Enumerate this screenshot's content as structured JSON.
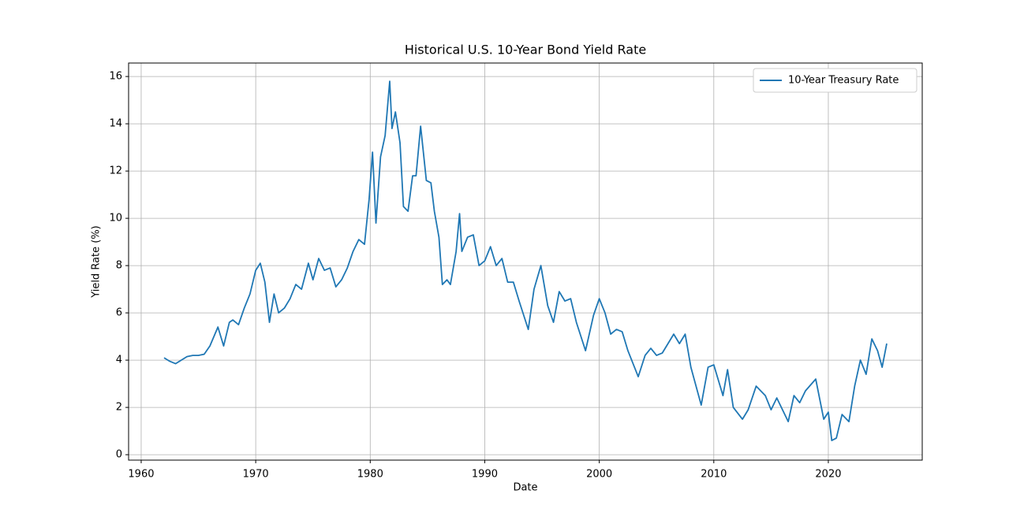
{
  "chart_data": {
    "type": "line",
    "title": "Historical U.S. 10-Year Bond Yield Rate",
    "x_label": "Date",
    "y_label": "Yield Rate (%)",
    "x": [
      1962.0,
      1962.5,
      1963.0,
      1963.5,
      1964.0,
      1964.5,
      1965.0,
      1965.5,
      1966.0,
      1966.7,
      1967.2,
      1967.7,
      1968.0,
      1968.5,
      1969.0,
      1969.5,
      1970.0,
      1970.4,
      1970.8,
      1971.2,
      1971.6,
      1972.0,
      1972.5,
      1973.0,
      1973.5,
      1974.0,
      1974.6,
      1975.0,
      1975.5,
      1976.0,
      1976.5,
      1977.0,
      1977.5,
      1978.0,
      1978.5,
      1979.0,
      1979.5,
      1979.9,
      1980.2,
      1980.5,
      1980.9,
      1981.3,
      1981.7,
      1981.9,
      1982.2,
      1982.6,
      1982.9,
      1983.3,
      1983.7,
      1984.0,
      1984.4,
      1984.9,
      1985.3,
      1985.6,
      1986.0,
      1986.3,
      1986.7,
      1987.0,
      1987.5,
      1987.8,
      1988.0,
      1988.5,
      1989.0,
      1989.5,
      1990.0,
      1990.5,
      1991.0,
      1991.5,
      1992.0,
      1992.5,
      1993.0,
      1993.8,
      1994.3,
      1994.9,
      1995.5,
      1996.0,
      1996.5,
      1997.0,
      1997.5,
      1998.0,
      1998.8,
      1999.5,
      2000.0,
      2000.5,
      2001.0,
      2001.5,
      2002.0,
      2002.5,
      2003.4,
      2004.0,
      2004.5,
      2005.0,
      2005.5,
      2006.5,
      2007.0,
      2007.5,
      2008.0,
      2008.9,
      2009.5,
      2010.0,
      2010.8,
      2011.2,
      2011.7,
      2012.5,
      2013.0,
      2013.7,
      2014.5,
      2015.0,
      2015.5,
      2016.5,
      2017.0,
      2017.5,
      2018.0,
      2018.9,
      2019.6,
      2020.0,
      2020.3,
      2020.7,
      2021.2,
      2021.8,
      2022.3,
      2022.8,
      2023.3,
      2023.8,
      2024.3,
      2024.7,
      2025.1
    ],
    "series": [
      {
        "name": "10-Year Treasury Rate",
        "color": "#1f77b4",
        "values": [
          4.1,
          3.95,
          3.85,
          4.0,
          4.15,
          4.2,
          4.2,
          4.25,
          4.6,
          5.4,
          4.6,
          5.6,
          5.7,
          5.5,
          6.2,
          6.8,
          7.8,
          8.1,
          7.3,
          5.6,
          6.8,
          6.0,
          6.2,
          6.6,
          7.2,
          7.0,
          8.1,
          7.4,
          8.3,
          7.8,
          7.9,
          7.1,
          7.4,
          7.9,
          8.6,
          9.1,
          8.9,
          10.8,
          12.8,
          9.8,
          12.6,
          13.5,
          15.8,
          13.8,
          14.5,
          13.2,
          10.5,
          10.3,
          11.8,
          11.8,
          13.9,
          11.6,
          11.5,
          10.3,
          9.2,
          7.2,
          7.4,
          7.2,
          8.6,
          10.2,
          8.6,
          9.2,
          9.3,
          8.0,
          8.2,
          8.8,
          8.0,
          8.3,
          7.3,
          7.3,
          6.5,
          5.3,
          7.0,
          8.0,
          6.3,
          5.6,
          6.9,
          6.5,
          6.6,
          5.6,
          4.4,
          5.9,
          6.6,
          6.0,
          5.1,
          5.3,
          5.2,
          4.4,
          3.3,
          4.2,
          4.5,
          4.2,
          4.3,
          5.1,
          4.7,
          5.1,
          3.7,
          2.1,
          3.7,
          3.8,
          2.5,
          3.6,
          2.0,
          1.5,
          1.9,
          2.9,
          2.5,
          1.9,
          2.4,
          1.4,
          2.5,
          2.2,
          2.7,
          3.2,
          1.5,
          1.8,
          0.6,
          0.7,
          1.7,
          1.4,
          2.9,
          4.0,
          3.4,
          4.9,
          4.4,
          3.7,
          4.7
        ]
      }
    ],
    "xlim": [
      1958.9,
      2028.2
    ],
    "xticks": [
      1960,
      1970,
      1980,
      1990,
      2000,
      2010,
      2020
    ],
    "ylim": [
      -0.23,
      16.57
    ],
    "yticks": [
      0,
      2,
      4,
      6,
      8,
      10,
      12,
      14,
      16
    ],
    "grid": true,
    "legend": "upper right"
  }
}
